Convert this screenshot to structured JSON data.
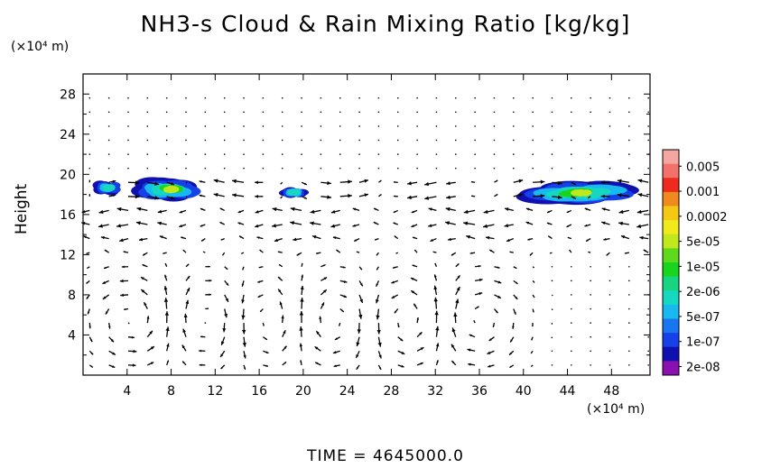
{
  "chart_data": {
    "type": "heatmap",
    "title": "NH3-s Cloud & Rain Mixing Ratio [kg/kg]",
    "ylabel": "Height",
    "x_unit": "(×10⁴ m)",
    "y_unit": "(×10⁴ m)",
    "xlim": [
      0,
      51.5
    ],
    "ylim": [
      0,
      30
    ],
    "x_ticks": [
      "4",
      "8",
      "12",
      "16",
      "20",
      "24",
      "28",
      "32",
      "36",
      "40",
      "44",
      "48"
    ],
    "y_ticks": [
      "4",
      "8",
      "12",
      "16",
      "20",
      "24",
      "28"
    ],
    "colorbar": {
      "labels": [
        "0.005",
        "0.001",
        "0.0002",
        "5e-05",
        "1e-05",
        "2e-06",
        "5e-07",
        "1e-07",
        "2e-08"
      ],
      "colors": [
        "#f4a6a0",
        "#f2716a",
        "#ee2a1c",
        "#f08a1c",
        "#f5c814",
        "#f0e91c",
        "#c0e81c",
        "#5ed91c",
        "#18d41c",
        "#16d480",
        "#16d8c0",
        "#18b8f0",
        "#1876f0",
        "#1640e8",
        "#1010b0",
        "#8a10b0"
      ]
    },
    "cloud_regions": [
      {
        "x_range": [
          0.8,
          3.8
        ],
        "y_range": [
          17.8,
          19.5
        ],
        "peak": "5e-06"
      },
      {
        "x_range": [
          4.5,
          11.5
        ],
        "y_range": [
          17.2,
          19.8
        ],
        "peak": "1e-05"
      },
      {
        "x_range": [
          17.8,
          20.5
        ],
        "y_range": [
          17.6,
          18.8
        ],
        "peak": "2e-06"
      },
      {
        "x_range": [
          39.0,
          51.5
        ],
        "y_range": [
          16.8,
          19.5
        ],
        "peak": "1e-05"
      }
    ],
    "vector_field": "wind arrows on regular grid",
    "time_label": "TIME  =  4645000.0"
  }
}
